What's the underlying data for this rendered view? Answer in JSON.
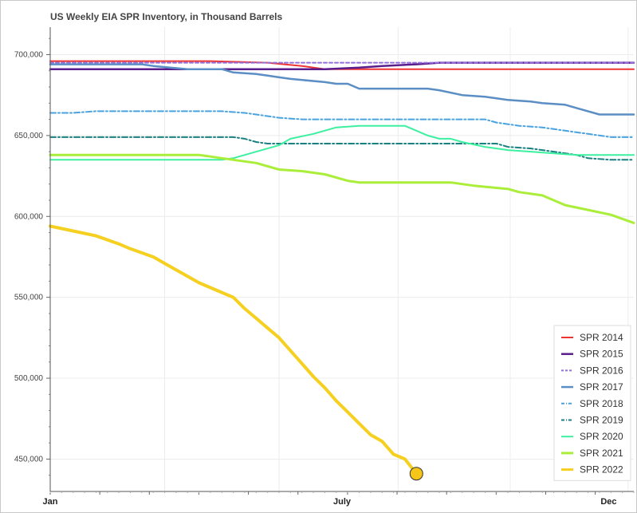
{
  "chart_data": {
    "type": "line",
    "title": "US Weekly EIA SPR Inventory, in Thousand Barrels",
    "xlabel": "",
    "ylabel": "",
    "x_ticks": [
      "Jan",
      "July",
      "Dec"
    ],
    "y_ticks": [
      "450,000",
      "500,000",
      "550,000",
      "600,000",
      "650,000",
      "700,000"
    ],
    "ylim": [
      430000,
      717000
    ],
    "grid": true,
    "legend_position": "bottom-right",
    "x_unit": "week of year",
    "series": [
      {
        "name": "SPR 2014",
        "color": "#ee3333",
        "dash": "solid",
        "width": 2,
        "points": [
          [
            1,
            696000
          ],
          [
            5,
            696000
          ],
          [
            10,
            696000
          ],
          [
            15,
            696000
          ],
          [
            20,
            695000
          ],
          [
            23,
            693000
          ],
          [
            25,
            691000
          ],
          [
            30,
            691000
          ],
          [
            40,
            691000
          ],
          [
            52,
            691000
          ]
        ]
      },
      {
        "name": "SPR 2015",
        "color": "#5a1e8c",
        "dash": "solid",
        "width": 2.5,
        "points": [
          [
            1,
            691000
          ],
          [
            10,
            691000
          ],
          [
            20,
            691000
          ],
          [
            25,
            691000
          ],
          [
            28,
            692000
          ],
          [
            30,
            693000
          ],
          [
            33,
            694000
          ],
          [
            35,
            695000
          ],
          [
            40,
            695000
          ],
          [
            45,
            695000
          ],
          [
            52,
            695000
          ]
        ]
      },
      {
        "name": "SPR 2016",
        "color": "#9370db",
        "dash": "dashed",
        "width": 2,
        "points": [
          [
            1,
            695000
          ],
          [
            10,
            695000
          ],
          [
            20,
            695000
          ],
          [
            30,
            695000
          ],
          [
            40,
            695000
          ],
          [
            52,
            695000
          ]
        ]
      },
      {
        "name": "SPR 2017",
        "color": "#5b8ec4",
        "dash": "solid",
        "width": 2.5,
        "points": [
          [
            1,
            694000
          ],
          [
            5,
            694000
          ],
          [
            9,
            694000
          ],
          [
            10,
            693000
          ],
          [
            13,
            691000
          ],
          [
            16,
            691000
          ],
          [
            17,
            689000
          ],
          [
            19,
            688000
          ],
          [
            20,
            687000
          ],
          [
            21,
            686000
          ],
          [
            22,
            685000
          ],
          [
            25,
            683000
          ],
          [
            26,
            682000
          ],
          [
            27,
            682000
          ],
          [
            28,
            679000
          ],
          [
            32,
            679000
          ],
          [
            34,
            679000
          ],
          [
            35,
            678000
          ],
          [
            37,
            675000
          ],
          [
            39,
            674000
          ],
          [
            40,
            673000
          ],
          [
            41,
            672000
          ],
          [
            43,
            671000
          ],
          [
            44,
            670000
          ],
          [
            46,
            669000
          ],
          [
            47,
            667000
          ],
          [
            49,
            663000
          ],
          [
            50,
            663000
          ],
          [
            51,
            663000
          ],
          [
            52,
            663000
          ]
        ]
      },
      {
        "name": "SPR 2018",
        "color": "#4aa3df",
        "dash": "dashdot",
        "width": 2,
        "points": [
          [
            1,
            664000
          ],
          [
            3,
            664000
          ],
          [
            5,
            665000
          ],
          [
            7,
            665000
          ],
          [
            9,
            665000
          ],
          [
            12,
            665000
          ],
          [
            16,
            665000
          ],
          [
            18,
            664000
          ],
          [
            19,
            663000
          ],
          [
            21,
            661000
          ],
          [
            23,
            660000
          ],
          [
            25,
            660000
          ],
          [
            27,
            660000
          ],
          [
            29,
            660000
          ],
          [
            31,
            660000
          ],
          [
            33,
            660000
          ],
          [
            35,
            660000
          ],
          [
            37,
            660000
          ],
          [
            39,
            660000
          ],
          [
            40,
            658000
          ],
          [
            42,
            656000
          ],
          [
            44,
            655000
          ],
          [
            46,
            653000
          ],
          [
            48,
            651000
          ],
          [
            50,
            649000
          ],
          [
            52,
            649000
          ]
        ]
      },
      {
        "name": "SPR 2019",
        "color": "#1a8080",
        "dash": "dashdot",
        "width": 2,
        "points": [
          [
            1,
            649000
          ],
          [
            5,
            649000
          ],
          [
            10,
            649000
          ],
          [
            15,
            649000
          ],
          [
            17,
            649000
          ],
          [
            18,
            648000
          ],
          [
            19,
            646000
          ],
          [
            20,
            645000
          ],
          [
            25,
            645000
          ],
          [
            30,
            645000
          ],
          [
            35,
            645000
          ],
          [
            38,
            645000
          ],
          [
            40,
            645000
          ],
          [
            41,
            643000
          ],
          [
            43,
            642000
          ],
          [
            45,
            640000
          ],
          [
            47,
            638000
          ],
          [
            48,
            636000
          ],
          [
            50,
            635000
          ],
          [
            52,
            635000
          ]
        ]
      },
      {
        "name": "SPR 2020",
        "color": "#3df0a0",
        "dash": "solid",
        "width": 2,
        "points": [
          [
            1,
            635000
          ],
          [
            5,
            635000
          ],
          [
            10,
            635000
          ],
          [
            16,
            635000
          ],
          [
            17,
            636000
          ],
          [
            18,
            638000
          ],
          [
            20,
            642000
          ],
          [
            21,
            644000
          ],
          [
            22,
            648000
          ],
          [
            24,
            651000
          ],
          [
            26,
            655000
          ],
          [
            28,
            656000
          ],
          [
            30,
            656000
          ],
          [
            32,
            656000
          ],
          [
            33,
            653000
          ],
          [
            34,
            650000
          ],
          [
            35,
            648000
          ],
          [
            36,
            648000
          ],
          [
            37,
            646000
          ],
          [
            39,
            643000
          ],
          [
            41,
            641000
          ],
          [
            43,
            640000
          ],
          [
            45,
            639000
          ],
          [
            47,
            638000
          ],
          [
            50,
            638000
          ],
          [
            52,
            638000
          ]
        ]
      },
      {
        "name": "SPR 2021",
        "color": "#aaee3a",
        "dash": "solid",
        "width": 3,
        "points": [
          [
            1,
            638000
          ],
          [
            5,
            638000
          ],
          [
            10,
            638000
          ],
          [
            14,
            638000
          ],
          [
            15,
            637000
          ],
          [
            16,
            636000
          ],
          [
            17,
            635000
          ],
          [
            19,
            633000
          ],
          [
            21,
            629000
          ],
          [
            23,
            628000
          ],
          [
            25,
            626000
          ],
          [
            27,
            622000
          ],
          [
            28,
            621000
          ],
          [
            30,
            621000
          ],
          [
            33,
            621000
          ],
          [
            35,
            621000
          ],
          [
            36,
            621000
          ],
          [
            37,
            620000
          ],
          [
            38,
            619000
          ],
          [
            41,
            617000
          ],
          [
            42,
            615000
          ],
          [
            44,
            613000
          ],
          [
            45,
            610000
          ],
          [
            46,
            607000
          ],
          [
            48,
            604000
          ],
          [
            50,
            601000
          ],
          [
            52,
            596000
          ]
        ]
      },
      {
        "name": "SPR 2022",
        "color": "#f5d020",
        "dash": "solid",
        "width": 4,
        "points": [
          [
            1,
            594000
          ],
          [
            3,
            591000
          ],
          [
            5,
            588000
          ],
          [
            7,
            583000
          ],
          [
            8,
            580000
          ],
          [
            10,
            575000
          ],
          [
            11,
            571000
          ],
          [
            12,
            567000
          ],
          [
            14,
            559000
          ],
          [
            15,
            556000
          ],
          [
            17,
            550000
          ],
          [
            18,
            543000
          ],
          [
            19,
            537000
          ],
          [
            20,
            531000
          ],
          [
            21,
            525000
          ],
          [
            22,
            517000
          ],
          [
            23,
            509000
          ],
          [
            24,
            501000
          ],
          [
            25,
            494000
          ],
          [
            26,
            486000
          ],
          [
            27,
            479000
          ],
          [
            28,
            472000
          ],
          [
            29,
            465000
          ],
          [
            30,
            461000
          ],
          [
            31,
            453000
          ],
          [
            32,
            450000
          ],
          [
            33,
            441000
          ]
        ]
      }
    ]
  }
}
